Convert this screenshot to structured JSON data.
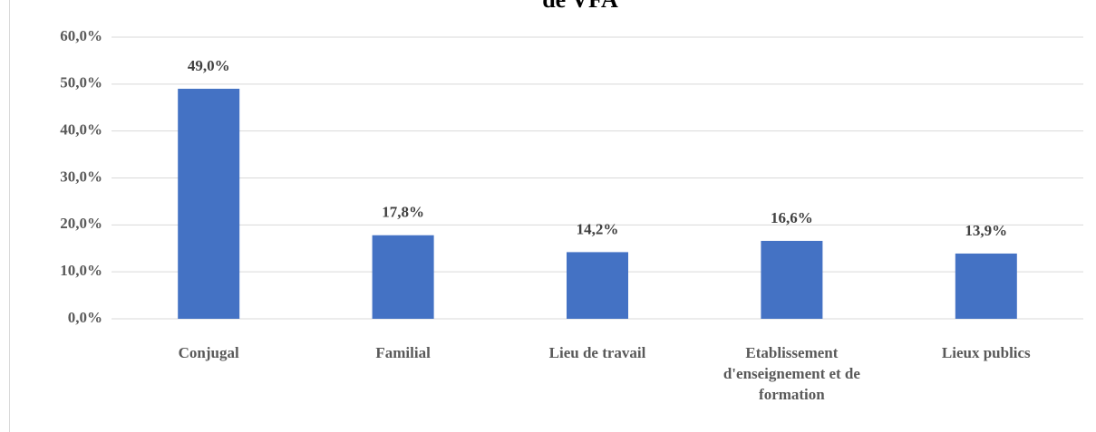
{
  "chart_data": {
    "type": "bar",
    "title": "de VFA",
    "categories": [
      "Conjugal",
      "Familial",
      "Lieu de travail",
      "Etablissement d'enseignement et de formation",
      "Lieux publics"
    ],
    "values": [
      49.0,
      17.8,
      14.2,
      16.6,
      13.9
    ],
    "value_labels": [
      "49,0%",
      "17,8%",
      "14,2%",
      "16,6%",
      "13,9%"
    ],
    "color": "#4472c4",
    "ylim": [
      0,
      60
    ],
    "yticks": [
      {
        "value": 0,
        "label": "0,0%"
      },
      {
        "value": 10,
        "label": "10,0%"
      },
      {
        "value": 20,
        "label": "20,0%"
      },
      {
        "value": 30,
        "label": "30,0%"
      },
      {
        "value": 40,
        "label": "40,0%"
      },
      {
        "value": 50,
        "label": "50,0%"
      },
      {
        "value": 60,
        "label": "60,0%"
      }
    ],
    "grid": true
  }
}
